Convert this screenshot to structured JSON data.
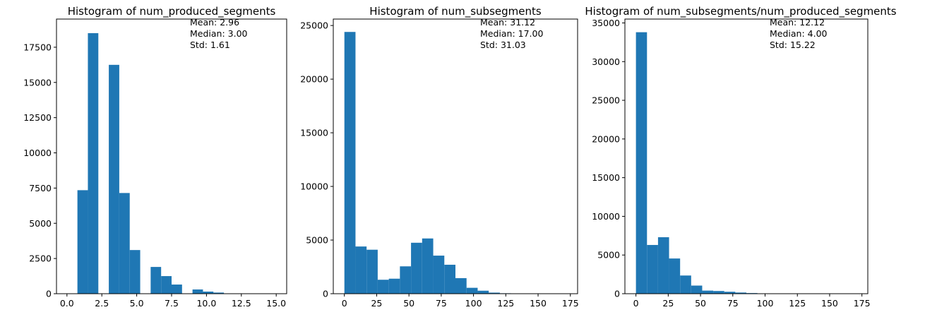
{
  "chart_data": [
    {
      "type": "bar",
      "title": "Histogram of num_produced_segments",
      "xlabel": "",
      "ylabel": "",
      "xlim": [
        -0.75,
        15.75
      ],
      "ylim": [
        0,
        19500
      ],
      "grid": false,
      "color": "#1f77b4",
      "xticks": [
        0,
        2.5,
        5,
        7.5,
        10,
        12.5,
        15
      ],
      "xtick_labels": [
        "0.0",
        "2.5",
        "5.0",
        "7.5",
        "10.0",
        "12.5",
        "15.0"
      ],
      "yticks": [
        0,
        2500,
        5000,
        7500,
        10000,
        12500,
        15000,
        17500
      ],
      "ytick_labels": [
        "0",
        "2500",
        "5000",
        "7500",
        "10000",
        "12500",
        "15000",
        "17500"
      ],
      "bin_edges": [
        0,
        0.75,
        1.5,
        2.25,
        3,
        3.75,
        4.5,
        5.25,
        6,
        6.75,
        7.5,
        8.25,
        9,
        9.75,
        10.5,
        11.25,
        12,
        12.75,
        13.5,
        14.25,
        15
      ],
      "values": [
        0,
        7350,
        18500,
        0,
        16250,
        7150,
        3100,
        0,
        1900,
        1250,
        650,
        0,
        300,
        150,
        80,
        0,
        20,
        10,
        5,
        0
      ],
      "annotation": [
        "Mean: 2.96",
        "Median: 3.00",
        "Std: 1.61"
      ]
    },
    {
      "type": "bar",
      "title": "Histogram of num_subsegments",
      "xlabel": "",
      "ylabel": "",
      "xlim": [
        -8.6,
        180.6
      ],
      "ylim": [
        0,
        25600
      ],
      "grid": false,
      "color": "#1f77b4",
      "xticks": [
        0,
        25,
        50,
        75,
        100,
        125,
        150,
        175
      ],
      "xtick_labels": [
        "0",
        "25",
        "50",
        "75",
        "100",
        "125",
        "150",
        "175"
      ],
      "yticks": [
        0,
        5000,
        10000,
        15000,
        20000,
        25000
      ],
      "ytick_labels": [
        "0",
        "5000",
        "10000",
        "15000",
        "20000",
        "25000"
      ],
      "bin_edges": [
        0,
        8.6,
        17.2,
        25.8,
        34.4,
        43,
        51.6,
        60.2,
        68.8,
        77.4,
        86,
        94.6,
        103.2,
        111.8,
        120.4,
        129,
        137.6,
        146.2,
        154.8,
        163.4,
        172
      ],
      "values": [
        24400,
        4400,
        4100,
        1300,
        1400,
        2550,
        4750,
        5150,
        3550,
        2700,
        1450,
        550,
        280,
        100,
        40,
        20,
        10,
        5,
        3,
        2
      ],
      "annotation": [
        "Mean: 31.12",
        "Median: 17.00",
        "Std: 31.03"
      ]
    },
    {
      "type": "bar",
      "title": "Histogram of num_subsegments/num_produced_segments",
      "xlabel": "",
      "ylabel": "",
      "xlim": [
        -8.55,
        179.55
      ],
      "ylim": [
        0,
        35500
      ],
      "grid": false,
      "color": "#1f77b4",
      "xticks": [
        0,
        25,
        50,
        75,
        100,
        125,
        150,
        175
      ],
      "xtick_labels": [
        "0",
        "25",
        "50",
        "75",
        "100",
        "125",
        "150",
        "175"
      ],
      "yticks": [
        0,
        5000,
        10000,
        15000,
        20000,
        25000,
        30000,
        35000
      ],
      "ytick_labels": [
        "0",
        "5000",
        "10000",
        "15000",
        "20000",
        "25000",
        "30000",
        "35000"
      ],
      "bin_edges": [
        0,
        8.55,
        17.1,
        25.65,
        34.2,
        42.75,
        51.3,
        59.85,
        68.4,
        76.95,
        85.5,
        94.05,
        102.6,
        111.15,
        119.7,
        128.25,
        136.8,
        145.35,
        153.9,
        162.45,
        171
      ],
      "values": [
        33800,
        6300,
        7300,
        4550,
        2350,
        1050,
        400,
        350,
        250,
        150,
        80,
        40,
        20,
        10,
        5,
        3,
        2,
        1,
        1,
        1
      ],
      "annotation": [
        "Mean: 12.12",
        "Median: 4.00",
        "Std: 15.22"
      ]
    }
  ]
}
